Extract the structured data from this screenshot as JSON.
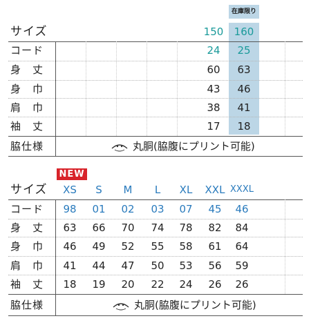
{
  "top": {
    "stock_label": "在庫限り",
    "size_label": "サイズ",
    "sizes": [
      "150",
      "160"
    ],
    "rows": [
      {
        "label": "コード",
        "values": [
          "24",
          "25"
        ]
      },
      {
        "label": "身　丈",
        "values": [
          "60",
          "63"
        ]
      },
      {
        "label": "身　巾",
        "values": [
          "43",
          "46"
        ]
      },
      {
        "label": "肩　巾",
        "values": [
          "38",
          "41"
        ]
      },
      {
        "label": "袖　丈",
        "values": [
          "17",
          "18"
        ]
      }
    ],
    "spec_label": "脇仕様",
    "spec_value": "丸胴(脇腹にプリント可能)"
  },
  "bottom": {
    "new_badge": "NEW",
    "size_label": "サイズ",
    "sizes": [
      "XS",
      "S",
      "M",
      "L",
      "XL",
      "XXL",
      "XXXL"
    ],
    "rows": [
      {
        "label": "コード",
        "values": [
          "98",
          "01",
          "02",
          "03",
          "07",
          "45",
          "46"
        ]
      },
      {
        "label": "身　丈",
        "values": [
          "63",
          "66",
          "70",
          "74",
          "78",
          "82",
          "84"
        ]
      },
      {
        "label": "身　巾",
        "values": [
          "46",
          "49",
          "52",
          "55",
          "58",
          "61",
          "64"
        ]
      },
      {
        "label": "肩　巾",
        "values": [
          "41",
          "44",
          "47",
          "50",
          "53",
          "56",
          "59"
        ]
      },
      {
        "label": "袖　丈",
        "values": [
          "18",
          "19",
          "20",
          "22",
          "24",
          "26",
          "26"
        ]
      }
    ],
    "spec_label": "脇仕様",
    "spec_value": "丸胴(脇腹にプリント可能)"
  },
  "colors": {
    "highlight": "#bcd6e6",
    "teal": "#1a9a9a",
    "blue": "#2a7bbd",
    "new_badge": "#d8232a"
  },
  "icons": [
    "round-body-icon"
  ]
}
